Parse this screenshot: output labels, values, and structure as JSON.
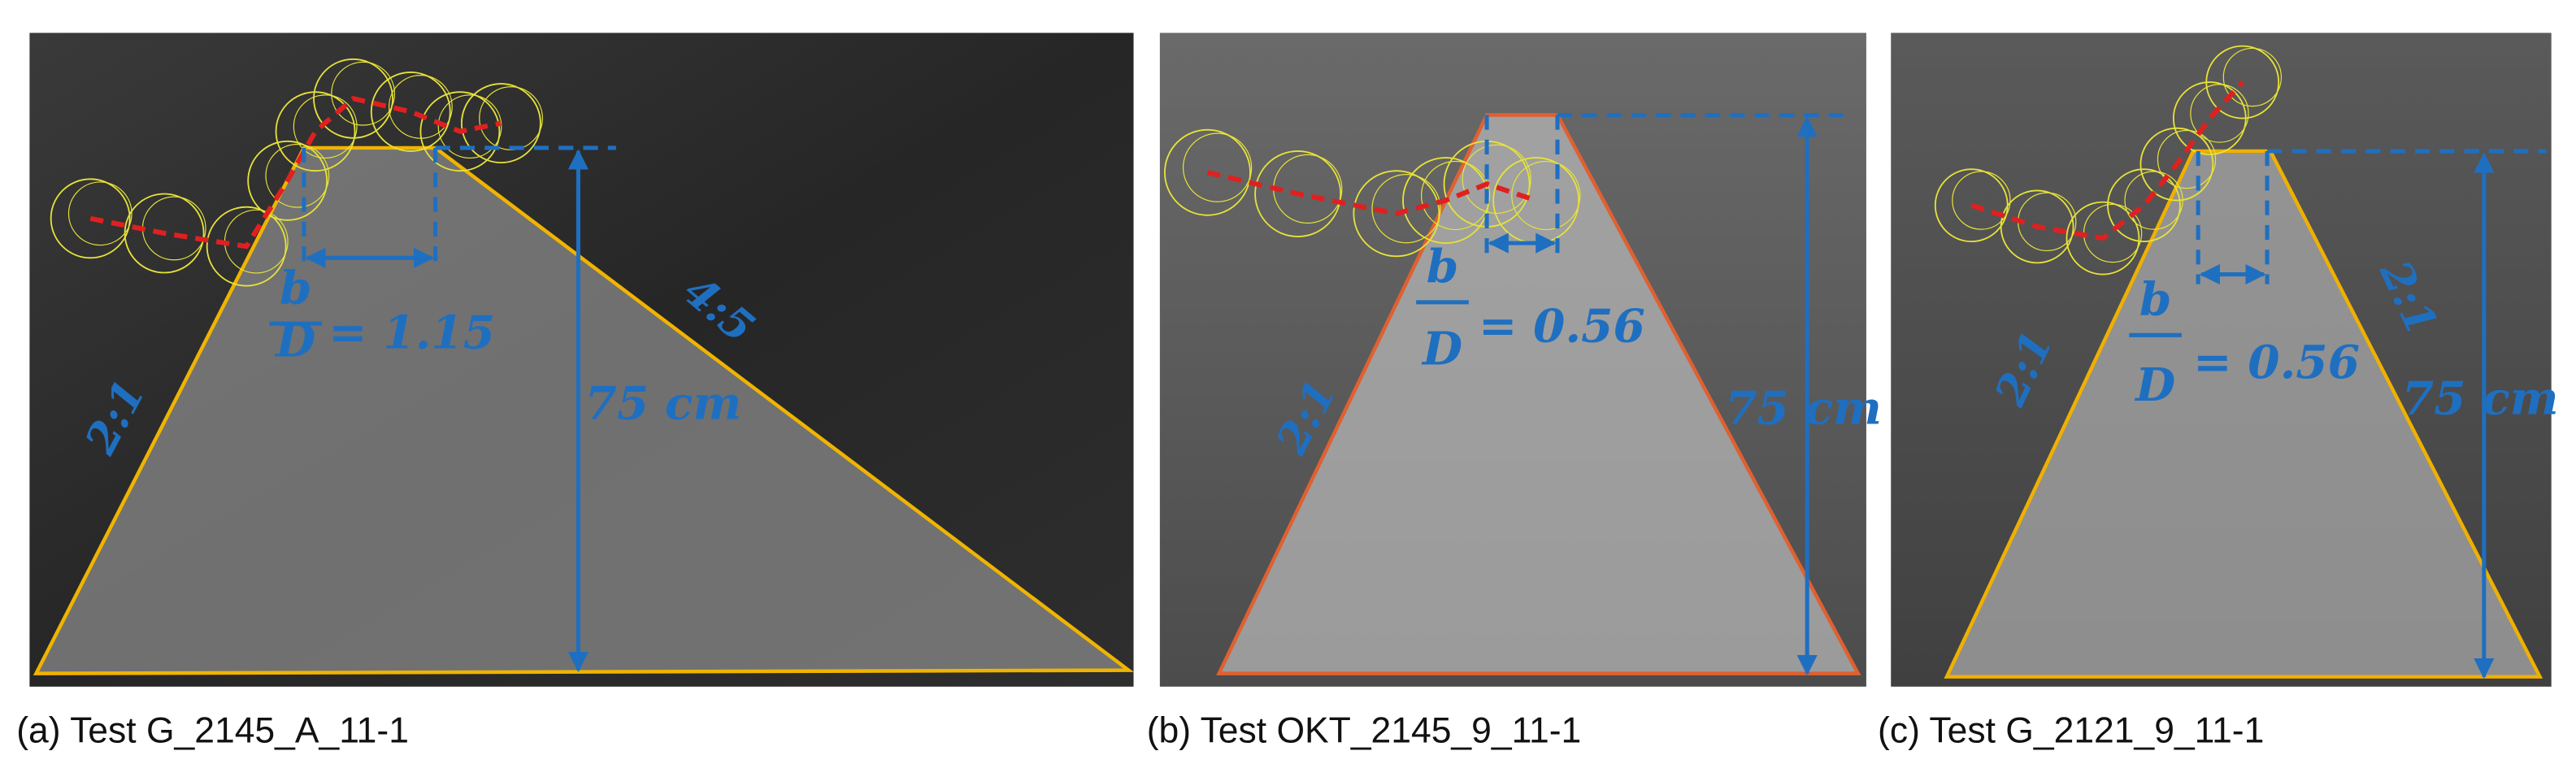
{
  "panels": [
    {
      "caption": "(a) Test G_2145_A_11-1",
      "slope_labels": [
        "2:1",
        "4:5"
      ],
      "fraction": {
        "numerator": "b",
        "denominator": "D",
        "value": "= 1.15"
      },
      "height_label": "75 cm"
    },
    {
      "caption": "(b) Test OKT_2145_9_11-1",
      "slope_labels": [
        "2:1"
      ],
      "fraction": {
        "numerator": "b",
        "denominator": "D",
        "value": "= 0.56"
      },
      "height_label": "75 cm"
    },
    {
      "caption": "(c) Test G_2121_9_11-1",
      "slope_labels": [
        "2:1",
        "2:1"
      ],
      "fraction": {
        "numerator": "b",
        "denominator": "D",
        "value": "= 0.56"
      },
      "height_label": "75 cm"
    }
  ]
}
